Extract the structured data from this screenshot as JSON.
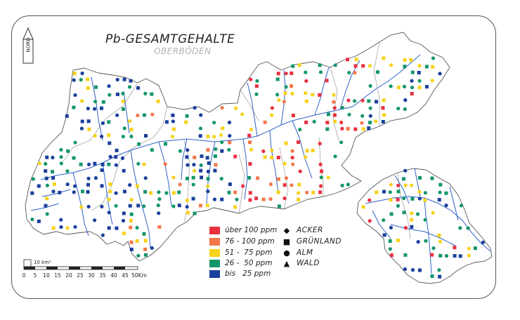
{
  "map": {
    "title": "Pb-GESAMTGEHALTE",
    "subtitle": "OBERBÖDEN",
    "north_label": "NORD",
    "scale_area_label": "10 km²",
    "scale_ticks": [
      "0",
      "5",
      "10",
      "15",
      "20",
      "25",
      "30",
      "35",
      "40",
      "45",
      "50Km"
    ]
  },
  "legend": {
    "classes": [
      {
        "label": "über 100 ppm",
        "color": "#e8303f"
      },
      {
        "label": "76 - 100 ppm",
        "color": "#f2784a"
      },
      {
        "label": "51 -  75 ppm",
        "color": "#f6d21a"
      },
      {
        "label": "26 -  50 ppm",
        "color": "#14966b"
      },
      {
        "label": "bis   25 ppm",
        "color": "#1a3f9c"
      }
    ],
    "types": [
      {
        "label": "ACKER",
        "icon": "diamond-icon"
      },
      {
        "label": "GRÜNLAND",
        "icon": "square-icon"
      },
      {
        "label": "ALM",
        "icon": "circle-icon"
      },
      {
        "label": "WALD",
        "icon": "triangle-icon"
      }
    ]
  },
  "colors": {
    "rivers": "#2f63c9",
    "outline": "#555555"
  }
}
